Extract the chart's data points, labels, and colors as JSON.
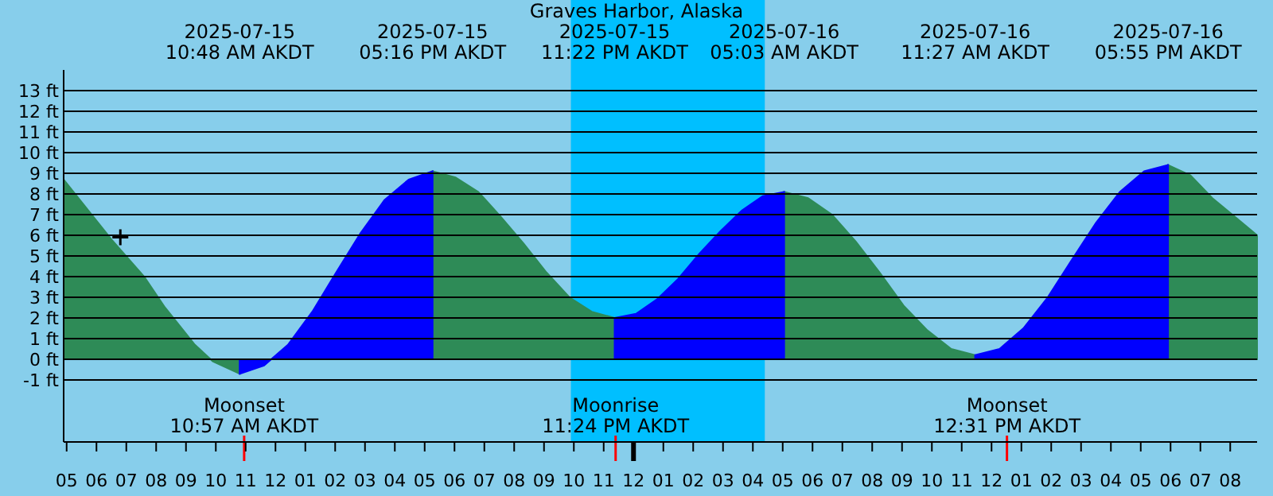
{
  "chart_data": {
    "type": "area",
    "title": "Graves Harbor, Alaska",
    "xlim": [
      "2025-07-15T04:54",
      "2025-07-16T20:54"
    ],
    "xticks": [
      {
        "value": "2025-07-15T05:00",
        "label": "05"
      },
      {
        "value": "2025-07-15T06:00",
        "label": "06"
      },
      {
        "value": "2025-07-15T07:00",
        "label": "07"
      },
      {
        "value": "2025-07-15T08:00",
        "label": "08"
      },
      {
        "value": "2025-07-15T09:00",
        "label": "09"
      },
      {
        "value": "2025-07-15T10:00",
        "label": "10"
      },
      {
        "value": "2025-07-15T11:00",
        "label": "11"
      },
      {
        "value": "2025-07-15T12:00",
        "label": "12"
      },
      {
        "value": "2025-07-15T13:00",
        "label": "01"
      },
      {
        "value": "2025-07-15T14:00",
        "label": "02"
      },
      {
        "value": "2025-07-15T15:00",
        "label": "03"
      },
      {
        "value": "2025-07-15T16:00",
        "label": "04"
      },
      {
        "value": "2025-07-15T17:00",
        "label": "05"
      },
      {
        "value": "2025-07-15T18:00",
        "label": "06"
      },
      {
        "value": "2025-07-15T19:00",
        "label": "07"
      },
      {
        "value": "2025-07-15T20:00",
        "label": "08"
      },
      {
        "value": "2025-07-15T21:00",
        "label": "09"
      },
      {
        "value": "2025-07-15T22:00",
        "label": "10"
      },
      {
        "value": "2025-07-15T23:00",
        "label": "11"
      },
      {
        "value": "2025-07-16T00:00",
        "label": "12"
      },
      {
        "value": "2025-07-16T01:00",
        "label": "01"
      },
      {
        "value": "2025-07-16T02:00",
        "label": "02"
      },
      {
        "value": "2025-07-16T03:00",
        "label": "03"
      },
      {
        "value": "2025-07-16T04:00",
        "label": "04"
      },
      {
        "value": "2025-07-16T05:00",
        "label": "05"
      },
      {
        "value": "2025-07-16T06:00",
        "label": "06"
      },
      {
        "value": "2025-07-16T07:00",
        "label": "07"
      },
      {
        "value": "2025-07-16T08:00",
        "label": "08"
      },
      {
        "value": "2025-07-16T09:00",
        "label": "09"
      },
      {
        "value": "2025-07-16T10:00",
        "label": "10"
      },
      {
        "value": "2025-07-16T11:00",
        "label": "11"
      },
      {
        "value": "2025-07-16T12:00",
        "label": "12"
      },
      {
        "value": "2025-07-16T13:00",
        "label": "01"
      },
      {
        "value": "2025-07-16T14:00",
        "label": "02"
      },
      {
        "value": "2025-07-16T15:00",
        "label": "03"
      },
      {
        "value": "2025-07-16T16:00",
        "label": "04"
      },
      {
        "value": "2025-07-16T17:00",
        "label": "05"
      },
      {
        "value": "2025-07-16T18:00",
        "label": "06"
      },
      {
        "value": "2025-07-16T19:00",
        "label": "07"
      },
      {
        "value": "2025-07-16T20:00",
        "label": "08"
      }
    ],
    "x2lim": [
      "2025-07-15T04:54",
      "2025-07-16T20:54"
    ],
    "x2ticks": [
      {
        "value": "2025-07-15T10:48",
        "label": "2025-07-15\n10:48 AM AKDT"
      },
      {
        "value": "2025-07-15T17:16",
        "label": "2025-07-15\n05:16 PM AKDT"
      },
      {
        "value": "2025-07-15T23:22",
        "label": "2025-07-15\n11:22 PM AKDT"
      },
      {
        "value": "2025-07-16T05:03",
        "label": "2025-07-16\n05:03 AM AKDT"
      },
      {
        "value": "2025-07-16T11:27",
        "label": "2025-07-16\n11:27 AM AKDT"
      },
      {
        "value": "2025-07-16T17:55",
        "label": "2025-07-16\n05:55 PM AKDT"
      }
    ],
    "ylim": [
      -4,
      14
    ],
    "yticks": [
      {
        "value": -1,
        "label": "-1 ft"
      },
      {
        "value": 0,
        "label": "0 ft"
      },
      {
        "value": 1,
        "label": "1 ft"
      },
      {
        "value": 2,
        "label": "2 ft"
      },
      {
        "value": 3,
        "label": "3 ft"
      },
      {
        "value": 4,
        "label": "4 ft"
      },
      {
        "value": 5,
        "label": "5 ft"
      },
      {
        "value": 6,
        "label": "6 ft"
      },
      {
        "value": 7,
        "label": "7 ft"
      },
      {
        "value": 8,
        "label": "8 ft"
      },
      {
        "value": 9,
        "label": "9 ft"
      },
      {
        "value": 10,
        "label": "10 ft"
      },
      {
        "value": 11,
        "label": "11 ft"
      },
      {
        "value": 12,
        "label": "12 ft"
      },
      {
        "value": 13,
        "label": "13 ft"
      }
    ],
    "grid": "y",
    "series": [
      {
        "color": "#2e8b57",
        "x": [
          "2025-07-15T04:54",
          "2025-07-15T06:30",
          "2025-07-15T07:36",
          "2025-07-15T08:18",
          "2025-07-15T09:18",
          "2025-07-15T09:54",
          "2025-07-15T10:48",
          "2025-07-15T14:02",
          "2025-07-15T17:16",
          "2025-07-15T18:02",
          "2025-07-15T18:48",
          "2025-07-15T19:33",
          "2025-07-15T20:19",
          "2025-07-15T21:05",
          "2025-07-15T21:51",
          "2025-07-15T22:36",
          "2025-07-15T23:22",
          "2025-07-16T02:12",
          "2025-07-16T05:03",
          "2025-07-16T05:51",
          "2025-07-16T06:39",
          "2025-07-16T07:27",
          "2025-07-16T08:15",
          "2025-07-16T09:03",
          "2025-07-16T09:51",
          "2025-07-16T10:39",
          "2025-07-16T11:27",
          "2025-07-16T14:41",
          "2025-07-16T17:55",
          "2025-07-16T18:40",
          "2025-07-16T19:24",
          "2025-07-16T20:09",
          "2025-07-16T20:54"
        ],
        "values": [
          8.7,
          5.8,
          4.0,
          2.5,
          0.7,
          -0.1,
          -0.7,
          null,
          9.1,
          8.8,
          8.1,
          6.9,
          5.6,
          4.2,
          3.0,
          2.3,
          2.0,
          null,
          8.1,
          7.8,
          7.0,
          5.7,
          4.2,
          2.6,
          1.4,
          0.5,
          0.2,
          null,
          9.4,
          8.9,
          7.8,
          6.9,
          6.0
        ]
      },
      {
        "color": "#0000ff",
        "x": [
          "2025-07-15T10:48",
          "2025-07-15T11:37",
          "2025-07-15T12:25",
          "2025-07-15T13:14",
          "2025-07-15T14:02",
          "2025-07-15T14:51",
          "2025-07-15T15:39",
          "2025-07-15T16:28",
          "2025-07-15T17:16",
          "2025-07-15T20:19",
          "2025-07-15T23:22",
          "2025-07-16T00:05",
          "2025-07-16T00:47",
          "2025-07-16T01:30",
          "2025-07-16T02:12",
          "2025-07-16T02:55",
          "2025-07-16T03:38",
          "2025-07-16T04:20",
          "2025-07-16T05:03",
          "2025-07-16T08:15",
          "2025-07-16T11:27",
          "2025-07-16T12:16",
          "2025-07-16T13:04",
          "2025-07-16T13:53",
          "2025-07-16T14:41",
          "2025-07-16T15:30",
          "2025-07-16T16:18",
          "2025-07-16T17:07",
          "2025-07-16T17:55"
        ],
        "values": [
          -0.7,
          -0.3,
          0.7,
          2.3,
          4.2,
          6.1,
          7.7,
          8.7,
          9.1,
          null,
          2.0,
          2.2,
          2.9,
          3.9,
          5.1,
          6.2,
          7.2,
          7.9,
          8.1,
          null,
          0.2,
          0.5,
          1.5,
          3.0,
          4.8,
          6.6,
          8.1,
          9.1,
          9.4
        ]
      },
      {
        "type": "scatter",
        "marker": "cross",
        "color": "#000000",
        "x": [
          "2025-07-15T06:48"
        ],
        "values": [
          5.9
        ]
      }
    ],
    "bands": [
      {
        "axis": "x",
        "from": "2025-07-15T21:54",
        "to": "2025-07-16T04:24",
        "color": "#00bfff"
      }
    ],
    "ref_lines": [
      {
        "axis": "x",
        "value": "2025-07-15T10:57",
        "label": "Moonset\n10:57 AM AKDT",
        "color": "#ff0000"
      },
      {
        "axis": "x",
        "value": "2025-07-15T23:24",
        "label": "Moonrise\n11:24 PM AKDT",
        "color": "#ff0000"
      },
      {
        "axis": "x",
        "value": "2025-07-16T12:31",
        "label": "Moonset\n12:31 PM AKDT",
        "color": "#ff0000"
      }
    ]
  }
}
